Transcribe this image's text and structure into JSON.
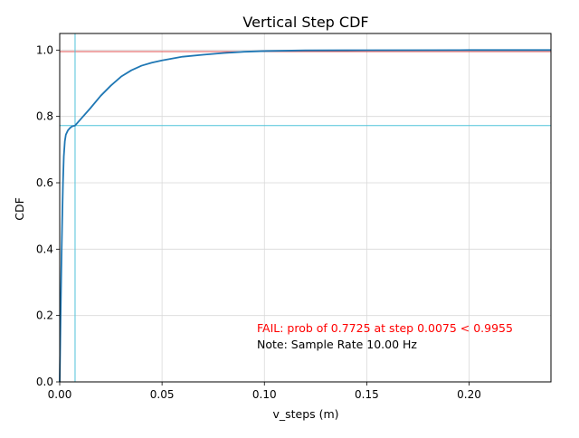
{
  "chart_data": {
    "type": "line",
    "title": "Vertical Step CDF",
    "xlabel": "v_steps (m)",
    "ylabel": "CDF",
    "xlim": [
      0.0,
      0.24
    ],
    "ylim": [
      0.0,
      1.05
    ],
    "x_ticks": [
      0.0,
      0.05,
      0.1,
      0.15,
      0.2
    ],
    "x_tick_labels": [
      "0.00",
      "0.05",
      "0.10",
      "0.15",
      "0.20"
    ],
    "y_ticks": [
      0.0,
      0.2,
      0.4,
      0.6,
      0.8,
      1.0
    ],
    "y_tick_labels": [
      "0.0",
      "0.2",
      "0.4",
      "0.6",
      "0.8",
      "1.0"
    ],
    "grid": true,
    "series": [
      {
        "color": "#1f77b4",
        "x": [
          0.0,
          0.0004,
          0.0008,
          0.0012,
          0.0016,
          0.002,
          0.0025,
          0.003,
          0.004,
          0.005,
          0.006,
          0.0075,
          0.01,
          0.015,
          0.02,
          0.025,
          0.03,
          0.035,
          0.04,
          0.045,
          0.05,
          0.06,
          0.07,
          0.08,
          0.09,
          0.1,
          0.12,
          0.15,
          0.2,
          0.24
        ],
        "y": [
          0.0,
          0.18,
          0.34,
          0.48,
          0.6,
          0.68,
          0.725,
          0.745,
          0.758,
          0.765,
          0.77,
          0.7725,
          0.79,
          0.825,
          0.862,
          0.893,
          0.92,
          0.939,
          0.953,
          0.962,
          0.969,
          0.98,
          0.986,
          0.991,
          0.995,
          0.997,
          0.999,
          0.9995,
          1.0,
          1.0
        ]
      }
    ],
    "reference_lines": [
      {
        "orientation": "horizontal",
        "value": 0.9955,
        "color": "#e05050"
      },
      {
        "orientation": "horizontal",
        "value": 0.7725,
        "color": "#4fc3d9"
      },
      {
        "orientation": "vertical",
        "value": 0.0075,
        "color": "#4fc3d9"
      }
    ],
    "annotations": [
      {
        "text": "FAIL: prob of 0.7725 at step 0.0075 < 0.9955",
        "color": "#ff0000"
      },
      {
        "text": "Note: Sample Rate 10.00 Hz",
        "color": "#000000"
      }
    ]
  }
}
